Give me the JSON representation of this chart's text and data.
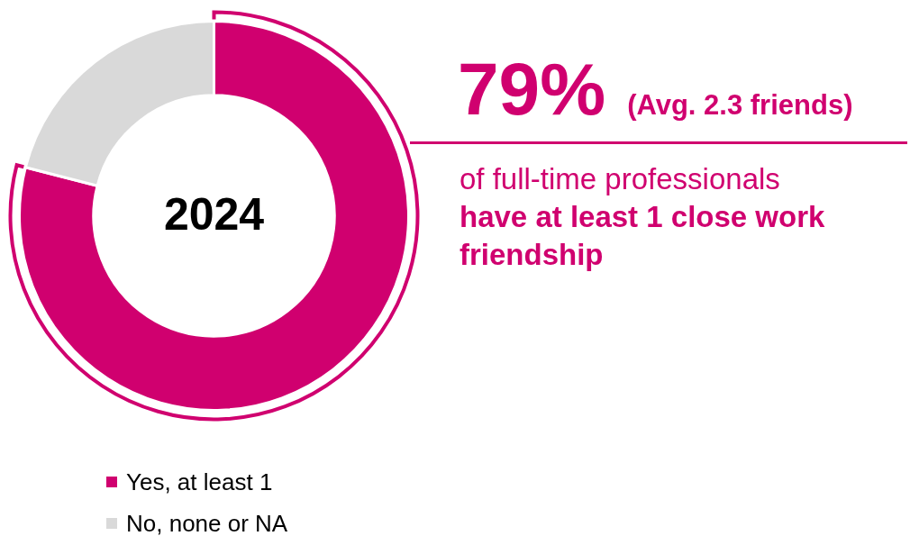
{
  "chart_data": {
    "type": "donut",
    "title": "2024",
    "categories": [
      "Yes, at least 1",
      "No, none or NA"
    ],
    "values": [
      79,
      21
    ],
    "colors": [
      "#d0006f",
      "#d9d9d9"
    ],
    "legend": "bottom left",
    "annotations": [
      "79%",
      "(Avg. 2.3 friends)",
      "of full-time professionals",
      "have at least 1 close work friendship"
    ]
  }
}
